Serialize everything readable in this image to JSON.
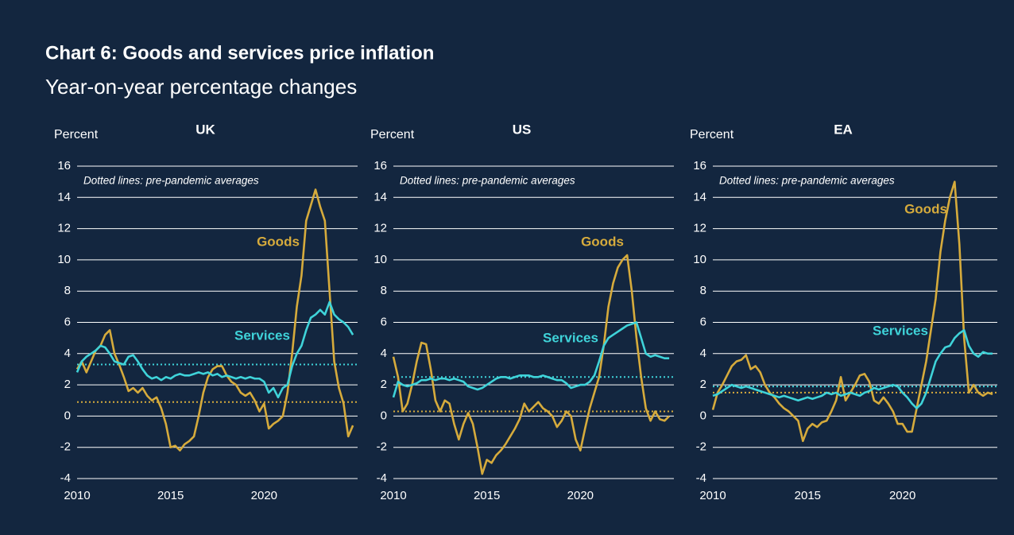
{
  "title": "Chart 6: Goods and services price inflation",
  "subtitle": "Year-on-year percentage changes",
  "chart_data": [
    {
      "type": "line",
      "title": "UK",
      "y_label": "Percent",
      "annotation": "Dotted lines: pre-pandemic averages",
      "x": [
        2010,
        2010.25,
        2010.5,
        2010.75,
        2011,
        2011.25,
        2011.5,
        2011.75,
        2012,
        2012.25,
        2012.5,
        2012.75,
        2013,
        2013.25,
        2013.5,
        2013.75,
        2014,
        2014.25,
        2014.5,
        2014.75,
        2015,
        2015.25,
        2015.5,
        2015.75,
        2016,
        2016.25,
        2016.5,
        2016.75,
        2017,
        2017.25,
        2017.5,
        2017.75,
        2018,
        2018.25,
        2018.5,
        2018.75,
        2019,
        2019.25,
        2019.5,
        2019.75,
        2020,
        2020.25,
        2020.5,
        2020.75,
        2021,
        2021.25,
        2021.5,
        2021.75,
        2022,
        2022.25,
        2022.5,
        2022.75,
        2023,
        2023.25,
        2023.5,
        2023.75,
        2024,
        2024.25,
        2024.5,
        2024.75
      ],
      "xlim": [
        2010,
        2025
      ],
      "xticks": [
        2010,
        2015,
        2020
      ],
      "ylim": [
        -4,
        16
      ],
      "yticks": [
        -4,
        -2,
        0,
        2,
        4,
        6,
        8,
        10,
        12,
        14,
        16
      ],
      "grid": true,
      "series": [
        {
          "name": "Goods",
          "color": "#d6ab3c",
          "average": 0.9,
          "values": [
            3.0,
            3.5,
            2.8,
            3.5,
            4.2,
            4.5,
            5.2,
            5.5,
            4.0,
            3.3,
            2.5,
            1.6,
            1.8,
            1.5,
            1.8,
            1.3,
            1.0,
            1.2,
            0.5,
            -0.5,
            -2.0,
            -1.9,
            -2.2,
            -1.8,
            -1.6,
            -1.3,
            0.0,
            1.5,
            2.5,
            3.0,
            3.2,
            3.2,
            2.6,
            2.2,
            2.0,
            1.5,
            1.3,
            1.5,
            1.0,
            0.3,
            0.8,
            -0.8,
            -0.5,
            -0.3,
            0.0,
            1.5,
            4.0,
            7.0,
            9.0,
            12.5,
            13.5,
            14.5,
            13.4,
            12.5,
            8.0,
            3.5,
            1.8,
            0.8,
            -1.3,
            -0.6
          ]
        },
        {
          "name": "Services",
          "color": "#3fd3d9",
          "average": 3.3,
          "values": [
            2.8,
            3.5,
            3.8,
            4.0,
            4.2,
            4.5,
            4.4,
            4.0,
            3.5,
            3.4,
            3.3,
            3.8,
            3.9,
            3.5,
            3.0,
            2.6,
            2.4,
            2.5,
            2.3,
            2.5,
            2.4,
            2.6,
            2.7,
            2.6,
            2.6,
            2.7,
            2.8,
            2.7,
            2.8,
            2.6,
            2.7,
            2.5,
            2.6,
            2.5,
            2.4,
            2.5,
            2.4,
            2.5,
            2.4,
            2.4,
            2.2,
            1.5,
            1.8,
            1.2,
            1.8,
            2.0,
            3.2,
            4.0,
            4.5,
            5.5,
            6.3,
            6.5,
            6.8,
            6.5,
            7.3,
            6.5,
            6.2,
            6.0,
            5.7,
            5.2
          ]
        }
      ]
    },
    {
      "type": "line",
      "title": "US",
      "y_label": "Percent",
      "annotation": "Dotted lines: pre-pandemic averages",
      "x": [
        2010,
        2010.25,
        2010.5,
        2010.75,
        2011,
        2011.25,
        2011.5,
        2011.75,
        2012,
        2012.25,
        2012.5,
        2012.75,
        2013,
        2013.25,
        2013.5,
        2013.75,
        2014,
        2014.25,
        2014.5,
        2014.75,
        2015,
        2015.25,
        2015.5,
        2015.75,
        2016,
        2016.25,
        2016.5,
        2016.75,
        2017,
        2017.25,
        2017.5,
        2017.75,
        2018,
        2018.25,
        2018.5,
        2018.75,
        2019,
        2019.25,
        2019.5,
        2019.75,
        2020,
        2020.25,
        2020.5,
        2020.75,
        2021,
        2021.25,
        2021.5,
        2021.75,
        2022,
        2022.25,
        2022.5,
        2022.75,
        2023,
        2023.25,
        2023.5,
        2023.75,
        2024,
        2024.25,
        2024.5,
        2024.75
      ],
      "xlim": [
        2010,
        2025
      ],
      "xticks": [
        2010,
        2015,
        2020
      ],
      "ylim": [
        -4,
        16
      ],
      "yticks": [
        -4,
        -2,
        0,
        2,
        4,
        6,
        8,
        10,
        12,
        14,
        16
      ],
      "grid": true,
      "series": [
        {
          "name": "Goods",
          "color": "#d6ab3c",
          "average": 0.3,
          "values": [
            3.8,
            2.5,
            0.3,
            0.8,
            2.0,
            3.5,
            4.7,
            4.6,
            3.0,
            1.0,
            0.3,
            1.0,
            0.8,
            -0.5,
            -1.5,
            -0.5,
            0.2,
            -0.5,
            -2.0,
            -3.7,
            -2.8,
            -3.0,
            -2.5,
            -2.2,
            -1.8,
            -1.3,
            -0.8,
            -0.2,
            0.8,
            0.3,
            0.6,
            0.9,
            0.5,
            0.3,
            0.0,
            -0.7,
            -0.3,
            0.3,
            0.0,
            -1.5,
            -2.2,
            -0.8,
            0.5,
            1.5,
            2.5,
            4.5,
            7.0,
            8.5,
            9.5,
            10.0,
            10.3,
            8.0,
            5.0,
            2.5,
            0.5,
            -0.3,
            0.3,
            -0.2,
            -0.3,
            0.0
          ]
        },
        {
          "name": "Services",
          "color": "#3fd3d9",
          "average": 2.5,
          "values": [
            1.2,
            2.2,
            2.0,
            1.9,
            2.0,
            2.1,
            2.3,
            2.3,
            2.4,
            2.3,
            2.4,
            2.4,
            2.3,
            2.4,
            2.3,
            2.2,
            1.9,
            1.8,
            1.7,
            1.8,
            2.0,
            2.2,
            2.4,
            2.5,
            2.5,
            2.4,
            2.5,
            2.6,
            2.6,
            2.6,
            2.5,
            2.5,
            2.6,
            2.5,
            2.4,
            2.3,
            2.3,
            2.1,
            1.8,
            1.9,
            2.0,
            2.0,
            2.2,
            2.6,
            3.5,
            4.5,
            5.0,
            5.2,
            5.4,
            5.6,
            5.8,
            5.9,
            6.0,
            5.0,
            4.0,
            3.8,
            3.9,
            3.8,
            3.7,
            3.7
          ]
        }
      ]
    },
    {
      "type": "line",
      "title": "EA",
      "y_label": "Percent",
      "annotation": "Dotted lines: pre-pandemic averages",
      "x": [
        2010,
        2010.25,
        2010.5,
        2010.75,
        2011,
        2011.25,
        2011.5,
        2011.75,
        2012,
        2012.25,
        2012.5,
        2012.75,
        2013,
        2013.25,
        2013.5,
        2013.75,
        2014,
        2014.25,
        2014.5,
        2014.75,
        2015,
        2015.25,
        2015.5,
        2015.75,
        2016,
        2016.25,
        2016.5,
        2016.75,
        2017,
        2017.25,
        2017.5,
        2017.75,
        2018,
        2018.25,
        2018.5,
        2018.75,
        2019,
        2019.25,
        2019.5,
        2019.75,
        2020,
        2020.25,
        2020.5,
        2020.75,
        2021,
        2021.25,
        2021.5,
        2021.75,
        2022,
        2022.25,
        2022.5,
        2022.75,
        2023,
        2023.25,
        2023.5,
        2023.75,
        2024,
        2024.25,
        2024.5,
        2024.75
      ],
      "xlim": [
        2010,
        2025
      ],
      "xticks": [
        2010,
        2015,
        2020
      ],
      "ylim": [
        -4,
        16
      ],
      "yticks": [
        -4,
        -2,
        0,
        2,
        4,
        6,
        8,
        10,
        12,
        14,
        16
      ],
      "grid": true,
      "series": [
        {
          "name": "Goods",
          "color": "#d6ab3c",
          "average": 1.5,
          "values": [
            0.4,
            1.5,
            2.0,
            2.6,
            3.2,
            3.5,
            3.6,
            3.9,
            3.0,
            3.2,
            2.8,
            2.0,
            1.5,
            1.2,
            0.8,
            0.5,
            0.3,
            0.0,
            -0.3,
            -1.6,
            -0.8,
            -0.5,
            -0.7,
            -0.4,
            -0.3,
            0.3,
            1.0,
            2.5,
            1.0,
            1.5,
            2.0,
            2.6,
            2.7,
            2.2,
            1.0,
            0.8,
            1.2,
            0.8,
            0.3,
            -0.5,
            -0.5,
            -1.0,
            -1.0,
            0.5,
            2.0,
            3.5,
            5.5,
            7.5,
            10.5,
            12.5,
            14.0,
            15.0,
            11.0,
            5.0,
            1.5,
            2.0,
            1.5,
            1.3,
            1.5,
            1.4
          ]
        },
        {
          "name": "Services",
          "color": "#3fd3d9",
          "average": 1.9,
          "values": [
            1.3,
            1.4,
            1.6,
            1.8,
            2.0,
            1.9,
            1.8,
            1.9,
            1.8,
            1.7,
            1.6,
            1.5,
            1.4,
            1.3,
            1.2,
            1.3,
            1.2,
            1.1,
            1.0,
            1.1,
            1.2,
            1.1,
            1.2,
            1.3,
            1.5,
            1.4,
            1.5,
            1.3,
            1.4,
            1.5,
            1.4,
            1.3,
            1.5,
            1.6,
            1.8,
            1.7,
            1.8,
            1.9,
            2.0,
            1.9,
            1.5,
            1.2,
            0.8,
            0.5,
            0.8,
            1.5,
            2.5,
            3.5,
            4.0,
            4.4,
            4.5,
            5.0,
            5.3,
            5.5,
            4.5,
            4.0,
            3.8,
            4.1,
            4.0,
            4.0
          ]
        }
      ]
    }
  ]
}
